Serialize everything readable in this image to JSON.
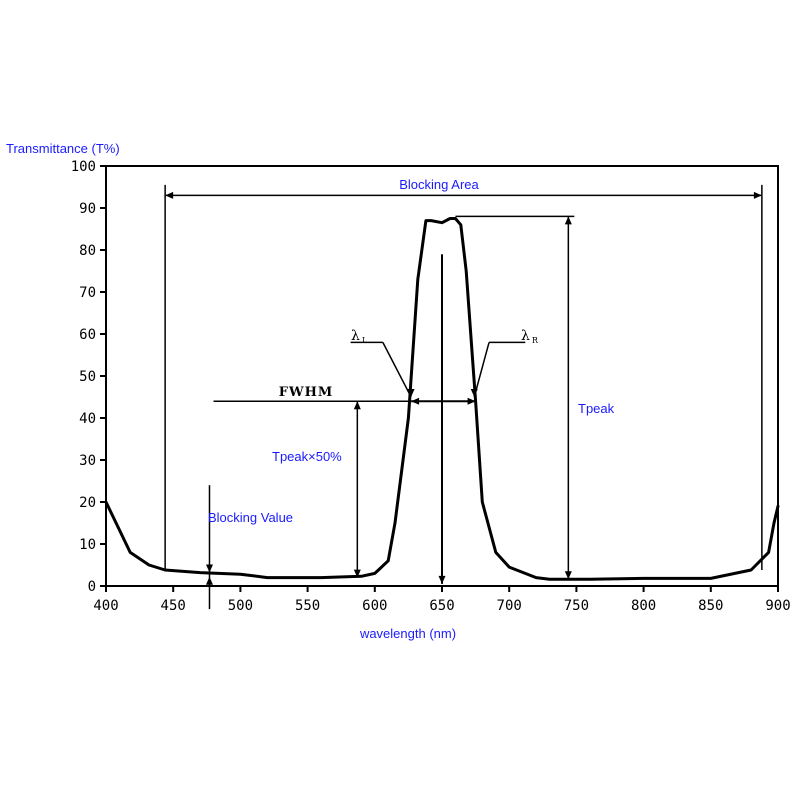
{
  "chart_data": {
    "type": "line",
    "ylabel": "Transmittance (T%)",
    "xlabel": "wavelength (nm)",
    "xlim": [
      400,
      900
    ],
    "ylim": [
      0,
      100
    ],
    "xticks": [
      400,
      450,
      500,
      550,
      600,
      650,
      700,
      750,
      800,
      850,
      900
    ],
    "yticks": [
      0,
      10,
      20,
      30,
      40,
      50,
      60,
      70,
      80,
      90,
      100
    ],
    "grid": false,
    "series": [
      {
        "x": [
          400,
          418,
          432,
          444,
          470,
          500,
          520,
          560,
          590,
          600,
          610,
          615,
          625,
          632,
          638,
          642,
          650,
          656,
          660,
          664,
          668,
          675,
          680,
          690,
          700,
          720,
          730,
          745,
          760,
          800,
          850,
          880,
          893,
          897,
          900
        ],
        "y": [
          20,
          8,
          5,
          3.8,
          3.2,
          2.8,
          2,
          2,
          2.3,
          3,
          6,
          15,
          40,
          73,
          87,
          87,
          86.5,
          87.5,
          87.5,
          86,
          75,
          44,
          20,
          8,
          4.5,
          2,
          1.6,
          1.6,
          1.6,
          1.8,
          1.8,
          3.8,
          8,
          15,
          19
        ]
      }
    ],
    "annotations": {
      "blocking_area": "Blocking Area",
      "fwhm": "FWHM",
      "lambda_l": "λ",
      "lambda_l_sub": "L",
      "lambda_r": "λ",
      "lambda_r_sub": "R",
      "tpeak": "Tpeak",
      "tpeak_half": "Tpeak×50%",
      "blocking_value": "Blocking Value"
    }
  }
}
